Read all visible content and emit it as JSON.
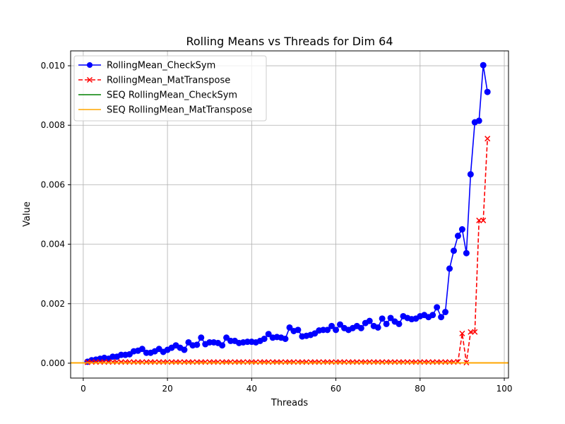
{
  "chart_data": {
    "type": "line",
    "title": "Rolling Means vs Threads for Dim 64",
    "xlabel": "Threads",
    "ylabel": "Value",
    "xlim": [
      -3,
      101
    ],
    "ylim": [
      -0.0005,
      0.0105
    ],
    "xticks": [
      0,
      20,
      40,
      60,
      80,
      100
    ],
    "xtick_labels": [
      "0",
      "20",
      "40",
      "60",
      "80",
      "100"
    ],
    "yticks": [
      0.0,
      0.002,
      0.004,
      0.006,
      0.008,
      0.01
    ],
    "ytick_labels": [
      "0.000",
      "0.002",
      "0.004",
      "0.006",
      "0.008",
      "0.010"
    ],
    "grid": true,
    "legend_position": "top-left",
    "series": [
      {
        "name": "RollingMean_CheckSym",
        "color": "#0000ff",
        "style": "solid",
        "marker": "circle",
        "x": [
          1,
          2,
          3,
          4,
          5,
          6,
          7,
          8,
          9,
          10,
          11,
          12,
          13,
          14,
          15,
          16,
          17,
          18,
          19,
          20,
          21,
          22,
          23,
          24,
          25,
          26,
          27,
          28,
          29,
          30,
          31,
          32,
          33,
          34,
          35,
          36,
          37,
          38,
          39,
          40,
          41,
          42,
          43,
          44,
          45,
          46,
          47,
          48,
          49,
          50,
          51,
          52,
          53,
          54,
          55,
          56,
          57,
          58,
          59,
          60,
          61,
          62,
          63,
          64,
          65,
          66,
          67,
          68,
          69,
          70,
          71,
          72,
          73,
          74,
          75,
          76,
          77,
          78,
          79,
          80,
          81,
          82,
          83,
          84,
          85,
          86,
          87,
          88,
          89,
          90,
          91,
          92,
          93,
          94,
          95,
          96
        ],
        "y": [
          5e-05,
          0.0001,
          0.00012,
          0.00015,
          0.00018,
          0.00015,
          0.00022,
          0.00022,
          0.00028,
          0.00028,
          0.0003,
          0.0004,
          0.00042,
          0.00048,
          0.00035,
          0.00035,
          0.0004,
          0.00048,
          0.00038,
          0.00045,
          0.00052,
          0.0006,
          0.00052,
          0.00045,
          0.0007,
          0.0006,
          0.00062,
          0.00086,
          0.00064,
          0.0007,
          0.0007,
          0.00068,
          0.0006,
          0.00086,
          0.00075,
          0.00075,
          0.00068,
          0.0007,
          0.00072,
          0.00072,
          0.0007,
          0.00075,
          0.00082,
          0.00098,
          0.00086,
          0.00088,
          0.00086,
          0.00082,
          0.0012,
          0.00108,
          0.00112,
          0.0009,
          0.00092,
          0.00095,
          0.001,
          0.0011,
          0.00112,
          0.00112,
          0.00125,
          0.00112,
          0.0013,
          0.00118,
          0.00112,
          0.00118,
          0.00125,
          0.00118,
          0.00135,
          0.00142,
          0.00125,
          0.0012,
          0.0015,
          0.00132,
          0.00152,
          0.0014,
          0.00132,
          0.00158,
          0.00152,
          0.00148,
          0.0015,
          0.00158,
          0.00162,
          0.00155,
          0.00162,
          0.00188,
          0.00155,
          0.00172,
          0.00318,
          0.00378,
          0.00428,
          0.0045,
          0.0037,
          0.00635,
          0.0081,
          0.00815,
          0.01002,
          0.00912
        ]
      },
      {
        "name": "RollingMean_MatTranspose",
        "color": "#ff0000",
        "style": "dashed",
        "marker": "x",
        "x": [
          1,
          2,
          3,
          4,
          5,
          6,
          7,
          8,
          9,
          10,
          11,
          12,
          13,
          14,
          15,
          16,
          17,
          18,
          19,
          20,
          21,
          22,
          23,
          24,
          25,
          26,
          27,
          28,
          29,
          30,
          31,
          32,
          33,
          34,
          35,
          36,
          37,
          38,
          39,
          40,
          41,
          42,
          43,
          44,
          45,
          46,
          47,
          48,
          49,
          50,
          51,
          52,
          53,
          54,
          55,
          56,
          57,
          58,
          59,
          60,
          61,
          62,
          63,
          64,
          65,
          66,
          67,
          68,
          69,
          70,
          71,
          72,
          73,
          74,
          75,
          76,
          77,
          78,
          79,
          80,
          81,
          82,
          83,
          84,
          85,
          86,
          87,
          88,
          89,
          90,
          91,
          92,
          93,
          94,
          95,
          96
        ],
        "y": [
          3e-05,
          4e-05,
          4e-05,
          4e-05,
          4e-05,
          4e-05,
          4e-05,
          4e-05,
          4e-05,
          4e-05,
          4e-05,
          4e-05,
          4e-05,
          4e-05,
          4e-05,
          4e-05,
          4e-05,
          4e-05,
          4e-05,
          4e-05,
          4e-05,
          4e-05,
          4e-05,
          4e-05,
          4e-05,
          4e-05,
          4e-05,
          4e-05,
          4e-05,
          4e-05,
          4e-05,
          4e-05,
          4e-05,
          4e-05,
          4e-05,
          4e-05,
          4e-05,
          4e-05,
          4e-05,
          4e-05,
          4e-05,
          4e-05,
          4e-05,
          4e-05,
          4e-05,
          4e-05,
          4e-05,
          4e-05,
          4e-05,
          4e-05,
          4e-05,
          4e-05,
          4e-05,
          4e-05,
          4e-05,
          4e-05,
          4e-05,
          4e-05,
          4e-05,
          4e-05,
          4e-05,
          4e-05,
          4e-05,
          4e-05,
          4e-05,
          4e-05,
          4e-05,
          4e-05,
          4e-05,
          4e-05,
          4e-05,
          4e-05,
          4e-05,
          4e-05,
          4e-05,
          4e-05,
          4e-05,
          4e-05,
          4e-05,
          4e-05,
          4e-05,
          4e-05,
          4e-05,
          4e-05,
          4e-05,
          4e-05,
          4e-05,
          4e-05,
          5e-05,
          0.001,
          2e-05,
          0.00105,
          0.00105,
          0.0048,
          0.0048,
          0.00755
        ]
      },
      {
        "name": "SEQ RollingMean_CheckSym",
        "color": "#008000",
        "style": "solid",
        "marker": "none",
        "constant": 1e-05
      },
      {
        "name": "SEQ RollingMean_MatTranspose",
        "color": "#ffa500",
        "style": "solid",
        "marker": "none",
        "constant": 1e-05
      }
    ]
  }
}
